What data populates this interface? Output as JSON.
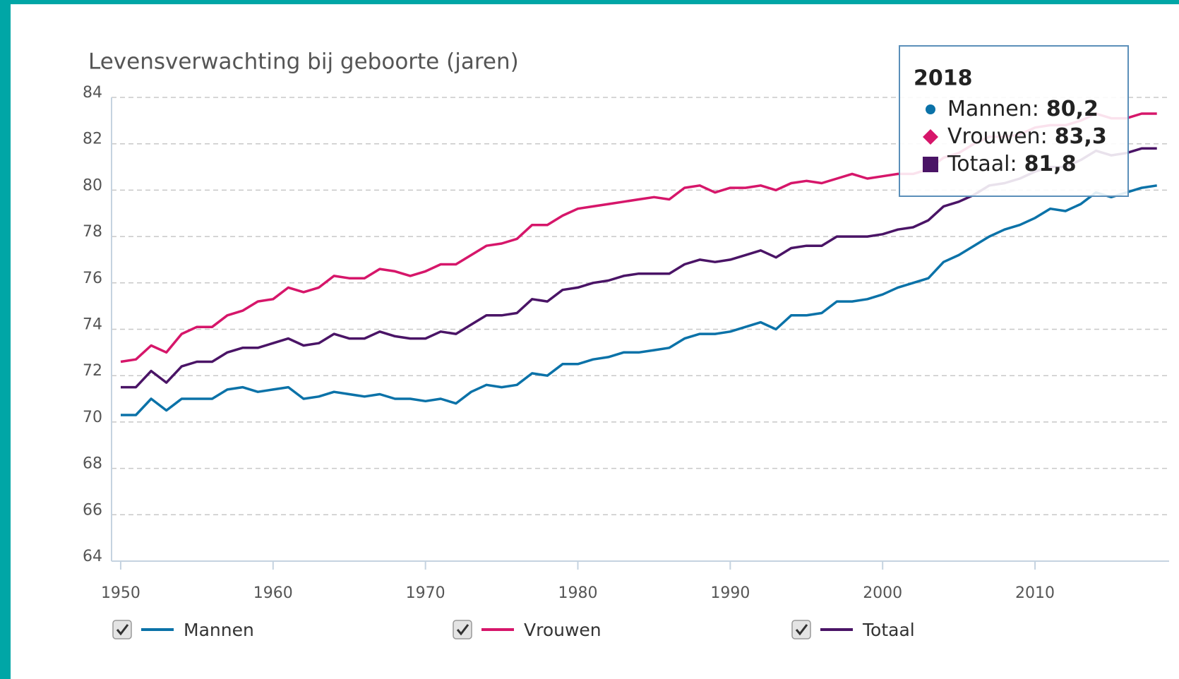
{
  "chart_data": {
    "type": "line",
    "title": "Levensverwachting bij geboorte (jaren)",
    "x": [
      1950,
      1951,
      1952,
      1953,
      1954,
      1955,
      1956,
      1957,
      1958,
      1959,
      1960,
      1961,
      1962,
      1963,
      1964,
      1965,
      1966,
      1967,
      1968,
      1969,
      1970,
      1971,
      1972,
      1973,
      1974,
      1975,
      1976,
      1977,
      1978,
      1979,
      1980,
      1981,
      1982,
      1983,
      1984,
      1985,
      1986,
      1987,
      1988,
      1989,
      1990,
      1991,
      1992,
      1993,
      1994,
      1995,
      1996,
      1997,
      1998,
      1999,
      2000,
      2001,
      2002,
      2003,
      2004,
      2005,
      2006,
      2007,
      2008,
      2009,
      2010,
      2011,
      2012,
      2013,
      2014,
      2015,
      2016,
      2017,
      2018
    ],
    "series": [
      {
        "name": "Mannen",
        "color": "#0b72a8",
        "values": [
          70.3,
          70.3,
          71.0,
          70.5,
          71.0,
          71.0,
          71.0,
          71.4,
          71.5,
          71.3,
          71.4,
          71.5,
          71.0,
          71.1,
          71.3,
          71.2,
          71.1,
          71.2,
          71.0,
          71.0,
          70.9,
          71.0,
          70.8,
          71.3,
          71.6,
          71.5,
          71.6,
          72.1,
          72.0,
          72.5,
          72.5,
          72.7,
          72.8,
          73.0,
          73.0,
          73.1,
          73.2,
          73.6,
          73.8,
          73.8,
          73.9,
          74.1,
          74.3,
          74.0,
          74.6,
          74.6,
          74.7,
          75.2,
          75.2,
          75.3,
          75.5,
          75.8,
          76.0,
          76.2,
          76.9,
          77.2,
          77.6,
          78.0,
          78.3,
          78.5,
          78.8,
          79.2,
          79.1,
          79.4,
          79.9,
          79.7,
          79.9,
          80.1,
          80.2
        ]
      },
      {
        "name": "Vrouwen",
        "color": "#d6166a",
        "values": [
          72.6,
          72.7,
          73.3,
          73.0,
          73.8,
          74.1,
          74.1,
          74.6,
          74.8,
          75.2,
          75.3,
          75.8,
          75.6,
          75.8,
          76.3,
          76.2,
          76.2,
          76.6,
          76.5,
          76.3,
          76.5,
          76.8,
          76.8,
          77.2,
          77.6,
          77.7,
          77.9,
          78.5,
          78.5,
          78.9,
          79.2,
          79.3,
          79.4,
          79.5,
          79.6,
          79.7,
          79.6,
          80.1,
          80.2,
          79.9,
          80.1,
          80.1,
          80.2,
          80.0,
          80.3,
          80.4,
          80.3,
          80.5,
          80.7,
          80.5,
          80.6,
          80.7,
          80.7,
          80.9,
          81.4,
          81.6,
          82.0,
          82.3,
          82.3,
          82.4,
          82.7,
          82.8,
          82.8,
          83.0,
          83.3,
          83.1,
          83.1,
          83.3,
          83.3
        ]
      },
      {
        "name": "Totaal",
        "color": "#4a1466",
        "values": [
          71.5,
          71.5,
          72.2,
          71.7,
          72.4,
          72.6,
          72.6,
          73.0,
          73.2,
          73.2,
          73.4,
          73.6,
          73.3,
          73.4,
          73.8,
          73.6,
          73.6,
          73.9,
          73.7,
          73.6,
          73.6,
          73.9,
          73.8,
          74.2,
          74.6,
          74.6,
          74.7,
          75.3,
          75.2,
          75.7,
          75.8,
          76.0,
          76.1,
          76.3,
          76.4,
          76.4,
          76.4,
          76.8,
          77.0,
          76.9,
          77.0,
          77.2,
          77.4,
          77.1,
          77.5,
          77.6,
          77.6,
          78.0,
          78.0,
          78.0,
          78.1,
          78.3,
          78.4,
          78.7,
          79.3,
          79.5,
          79.8,
          80.2,
          80.3,
          80.5,
          80.8,
          81.0,
          81.0,
          81.3,
          81.7,
          81.5,
          81.6,
          81.8,
          81.8
        ]
      }
    ],
    "xlim": [
      1949.4,
      2018.8
    ],
    "xticks": [
      1950,
      1960,
      1970,
      1980,
      1990,
      2000,
      2010
    ],
    "ylim": [
      64,
      84
    ],
    "yticks": [
      64,
      66,
      68,
      70,
      72,
      74,
      76,
      78,
      80,
      82,
      84
    ],
    "grid": true,
    "tooltip": {
      "title": "2018",
      "items": [
        {
          "label": "Mannen:",
          "value": "80,2"
        },
        {
          "label": "Vrouwen:",
          "value": "83,3"
        },
        {
          "label": "Totaal:",
          "value": "81,8"
        }
      ]
    }
  }
}
